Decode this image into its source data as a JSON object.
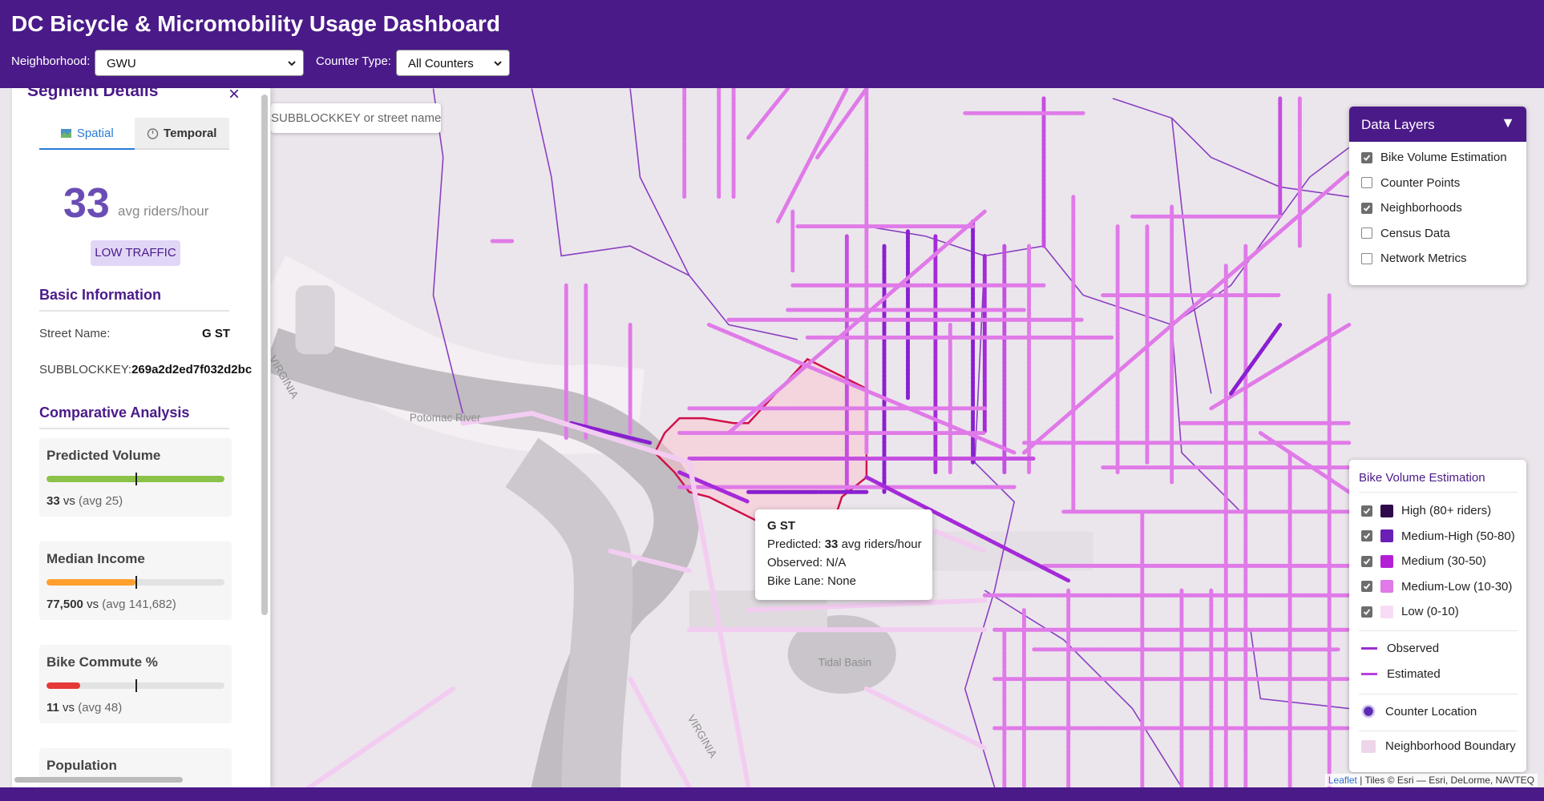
{
  "header": {
    "title": "DC Bicycle & Micromobility Usage Dashboard",
    "neighborhood_label": "Neighborhood:",
    "neighborhood_value": "GWU",
    "counter_type_label": "Counter Type:",
    "counter_type_value": "All Counters"
  },
  "search": {
    "placeholder": "SUBBLOCKKEY or street name"
  },
  "sidebar": {
    "title": "Segment Details",
    "close": "×",
    "tabs": [
      {
        "label": "Spatial",
        "active": true
      },
      {
        "label": "Temporal",
        "active": false
      }
    ],
    "metric": {
      "value": 33,
      "unit": "avg riders/hour",
      "badge": "LOW TRAFFIC"
    },
    "basic_info": {
      "heading": "Basic Information",
      "rows": [
        [
          "Street Name:",
          "G ST"
        ],
        [
          "SUBBLOCKKEY:",
          "269a2d2ed7f032d2bc"
        ]
      ]
    },
    "comparative": {
      "heading": "Comparative Analysis",
      "cards": [
        {
          "title": "Predicted Volume",
          "value": "33",
          "vs": "vs",
          "avg": "(avg 25)"
        },
        {
          "title": "Median Income",
          "value": "77,500",
          "vs": "vs",
          "avg": "(avg 141,682)"
        },
        {
          "title": "Bike Commute %",
          "value": "11",
          "vs": "vs",
          "avg": "(avg 48)"
        },
        {
          "title": "Population"
        }
      ]
    }
  },
  "data_layers": {
    "title": "Data Layers",
    "toggle": "▼",
    "items": [
      {
        "label": "Bike Volume Estimation",
        "checked": true
      },
      {
        "label": "Counter Points",
        "checked": false
      },
      {
        "label": "Neighborhoods",
        "checked": true
      },
      {
        "label": "Census Data",
        "checked": false
      },
      {
        "label": "Network Metrics",
        "checked": false
      }
    ]
  },
  "legend": {
    "title": "Bike Volume Estimation",
    "items": [
      {
        "label": "High (80+ riders)",
        "color": "#2e0a4a"
      },
      {
        "label": "Medium-High (50-80)",
        "color": "#6a1fb5"
      },
      {
        "label": "Medium (30-50)",
        "color": "#b41fd6"
      },
      {
        "label": "Medium-Low (10-30)",
        "color": "#e07ae8"
      },
      {
        "label": "Low (0-10)",
        "color": "#f8dcf6"
      }
    ],
    "lines": [
      {
        "label": "Observed",
        "color": "#9b2fd0"
      },
      {
        "label": "Estimated",
        "color": "#b93fe0"
      }
    ],
    "counter_location": "Counter Location",
    "neighborhood_boundary": "Neighborhood Boundary"
  },
  "tooltip": {
    "title": "G ST",
    "rows": [
      {
        "label": "Predicted:",
        "value": "33",
        "unit": "avg riders/hour"
      },
      {
        "label": "Observed:",
        "value": "N/A"
      },
      {
        "label": "Bike Lane:",
        "value": "None"
      }
    ]
  },
  "map_labels": [
    "Potomac River",
    "Tidal Basin",
    "VIRGINIA",
    "VIRGINIA"
  ],
  "attribution": {
    "link": "Leaflet",
    "text": "| Tiles © Esri — Esri, DeLorme, NAVTEQ"
  }
}
